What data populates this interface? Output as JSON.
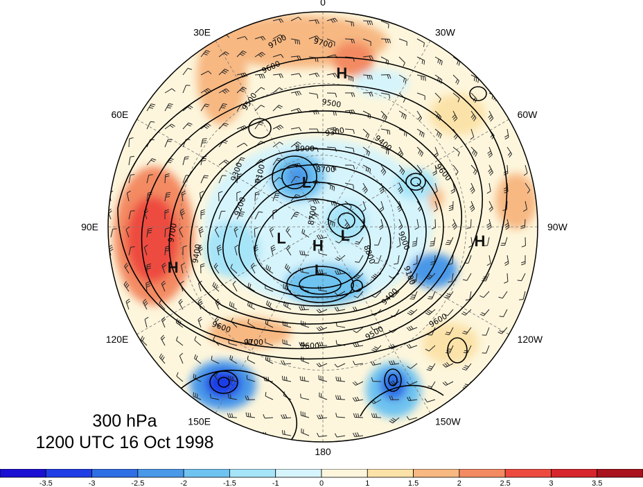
{
  "map": {
    "level_label": "300 hPa",
    "time_label": "1200 UTC 16 Oct 1998",
    "longitude_labels": [
      {
        "text": "0",
        "lon": 0
      },
      {
        "text": "30W",
        "lon": -30
      },
      {
        "text": "60W",
        "lon": -60
      },
      {
        "text": "90W",
        "lon": -90
      },
      {
        "text": "120W",
        "lon": -120
      },
      {
        "text": "150W",
        "lon": -150
      },
      {
        "text": "180",
        "lon": 180
      },
      {
        "text": "150E",
        "lon": 150
      },
      {
        "text": "120E",
        "lon": 120
      },
      {
        "text": "90E",
        "lon": 90
      },
      {
        "text": "60E",
        "lon": 60
      },
      {
        "text": "30E",
        "lon": 30
      }
    ],
    "pressure_centers": [
      {
        "symbol": "H",
        "lon": -7,
        "lat": 25
      },
      {
        "symbol": "H",
        "lon": -95,
        "lat": 24
      },
      {
        "symbol": "H",
        "lon": 105,
        "lat": 25
      },
      {
        "symbol": "H",
        "lon": 165,
        "lat": 82
      },
      {
        "symbol": "L",
        "lon": 20,
        "lat": 70
      },
      {
        "symbol": "L",
        "lon": -110,
        "lat": 80
      },
      {
        "symbol": "L",
        "lon": 105,
        "lat": 72
      },
      {
        "symbol": "L",
        "lon": 175,
        "lat": 72
      }
    ],
    "contour_labels": [
      "9700",
      "9700",
      "9600",
      "9600",
      "9500",
      "9500",
      "9400",
      "9400",
      "9300",
      "9300",
      "9200",
      "9100",
      "9100",
      "8900",
      "8700",
      "8700",
      "8800",
      "9000",
      "9600",
      "9700",
      "9700",
      "9600",
      "9500",
      "9400",
      "9600"
    ],
    "colorbar": {
      "ticks": [
        "-3.5",
        "-3",
        "-2.5",
        "-2",
        "-1.5",
        "-1",
        "0",
        "1",
        "1.5",
        "2",
        "2.5",
        "3",
        "3.5"
      ],
      "colors": [
        "#1a0fd2",
        "#1f3ee6",
        "#2f6fe6",
        "#4a98e8",
        "#6ec3f0",
        "#a6e4f8",
        "#d6f4fb",
        "#fdf6dc",
        "#fbe2a8",
        "#f7b882",
        "#f38a62",
        "#ee4b40",
        "#d6252c",
        "#a8131d"
      ]
    }
  }
}
